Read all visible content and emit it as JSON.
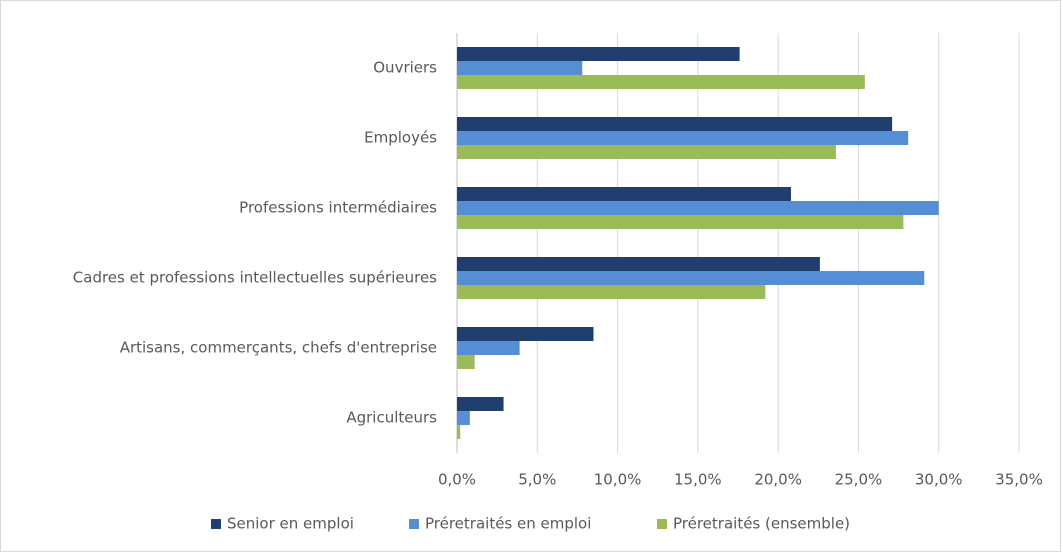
{
  "chart_data": {
    "type": "hbar",
    "categories": [
      "Ouvriers",
      "Employés",
      "Professions intermédiaires",
      "Cadres et professions intellectuelles supérieures",
      "Artisans, commerçants, chefs d'entreprise",
      "Agriculteurs"
    ],
    "series": [
      {
        "name": "Senior en emploi",
        "color": "#203f6f",
        "values": [
          17.6,
          27.1,
          20.8,
          22.6,
          8.5,
          2.9
        ]
      },
      {
        "name": "Préretraités en emploi",
        "color": "#558ed5",
        "values": [
          7.8,
          28.1,
          30.0,
          29.1,
          3.9,
          0.8
        ]
      },
      {
        "name": "Préretraités (ensemble)",
        "color": "#9bbb59",
        "values": [
          25.4,
          23.6,
          27.8,
          19.2,
          1.1,
          0.2
        ]
      }
    ],
    "xlim": [
      0,
      35
    ],
    "xticks": [
      {
        "value": 0,
        "label": "0,0%"
      },
      {
        "value": 5,
        "label": "5,0%"
      },
      {
        "value": 10,
        "label": "10,0%"
      },
      {
        "value": 15,
        "label": "15,0%"
      },
      {
        "value": 20,
        "label": "20,0%"
      },
      {
        "value": 25,
        "label": "25,0%"
      },
      {
        "value": 30,
        "label": "30,0%"
      },
      {
        "value": 35,
        "label": "35,0%"
      }
    ],
    "grid": true,
    "legend": "bottom"
  }
}
